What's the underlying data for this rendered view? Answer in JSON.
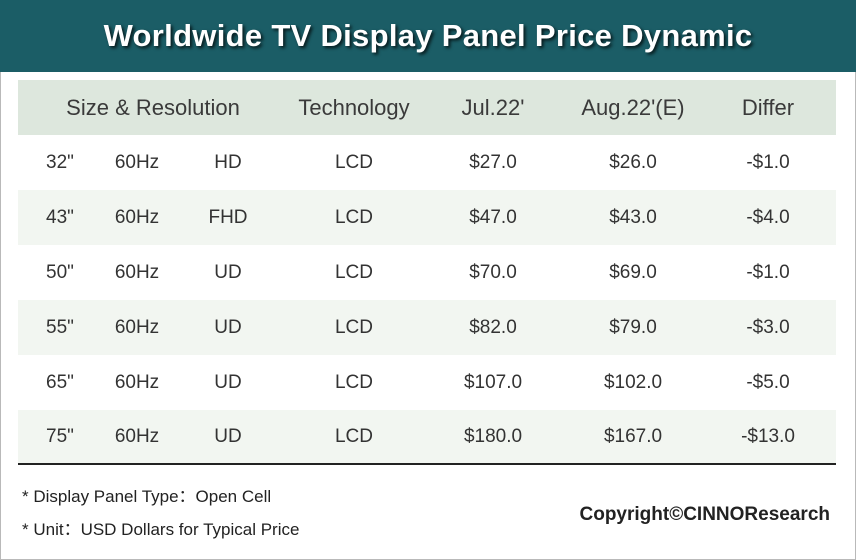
{
  "title": "Worldwide TV Display Panel Price Dynamic",
  "chart_data": {
    "type": "table",
    "columns": [
      "Size & Resolution",
      "Technology",
      "Jul.22'",
      "Aug.22'(E)",
      "Differ"
    ],
    "rows": [
      {
        "size": "32\"",
        "refresh": "60Hz",
        "resolution": "HD",
        "technology": "LCD",
        "jul": "$27.0",
        "aug": "$26.0",
        "differ": "-$1.0"
      },
      {
        "size": "43\"",
        "refresh": "60Hz",
        "resolution": "FHD",
        "technology": "LCD",
        "jul": "$47.0",
        "aug": "$43.0",
        "differ": "-$4.0"
      },
      {
        "size": "50\"",
        "refresh": "60Hz",
        "resolution": "UD",
        "technology": "LCD",
        "jul": "$70.0",
        "aug": "$69.0",
        "differ": "-$1.0"
      },
      {
        "size": "55\"",
        "refresh": "60Hz",
        "resolution": "UD",
        "technology": "LCD",
        "jul": "$82.0",
        "aug": "$79.0",
        "differ": "-$3.0"
      },
      {
        "size": "65\"",
        "refresh": "60Hz",
        "resolution": "UD",
        "technology": "LCD",
        "jul": "$107.0",
        "aug": "$102.0",
        "differ": "-$5.0"
      },
      {
        "size": "75\"",
        "refresh": "60Hz",
        "resolution": "UD",
        "technology": "LCD",
        "jul": "$180.0",
        "aug": "$167.0",
        "differ": "-$13.0"
      }
    ]
  },
  "notes": [
    "* Display Panel Type：Open Cell",
    "* Unit：USD Dollars for Typical Price"
  ],
  "copyright": "Copyright©CINNOResearch",
  "colors": {
    "title_bg": "#1b5d66",
    "header_bg": "#dde7dd",
    "stripe_bg": "#f2f6f1"
  }
}
